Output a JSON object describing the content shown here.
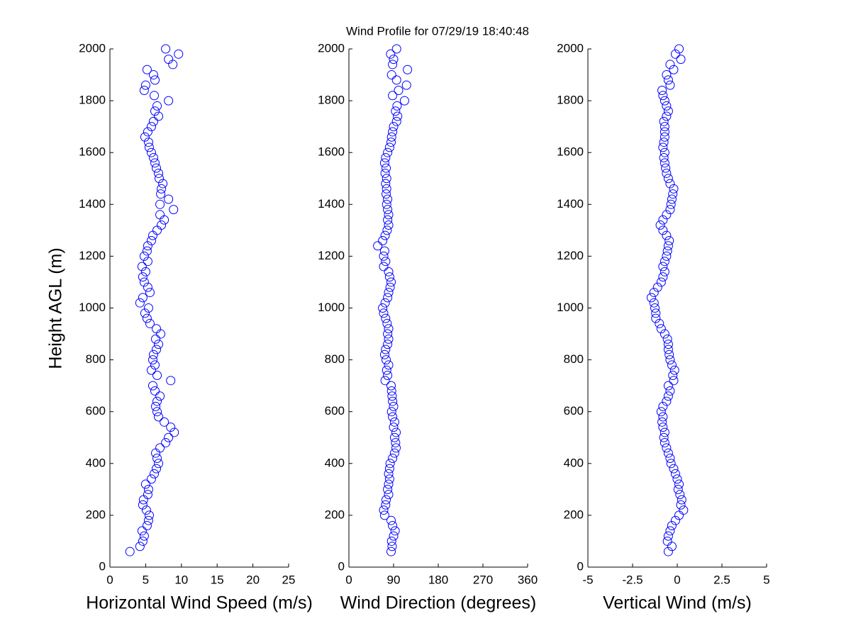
{
  "title": "Wind Profile for  07/29/19 18:40:48",
  "chart_data": [
    {
      "type": "scatter",
      "xlabel": "Horizontal Wind Speed (m/s)",
      "ylabel": "Height AGL (m)",
      "color": "#0000ff",
      "xlim": [
        0,
        25
      ],
      "xticks": [
        0,
        5,
        10,
        15,
        20,
        25
      ],
      "ylim": [
        0,
        2000
      ],
      "yticks": [
        0,
        200,
        400,
        600,
        800,
        1000,
        1200,
        1400,
        1600,
        1800,
        2000
      ],
      "x": [
        2.8,
        4.2,
        4.6,
        4.8,
        4.5,
        5.2,
        5.4,
        5.5,
        5.1,
        4.6,
        4.7,
        5.3,
        5.4,
        5.0,
        5.8,
        6.2,
        6.5,
        6.8,
        6.6,
        6.4,
        7.0,
        7.8,
        8.2,
        9.0,
        8.5,
        7.6,
        6.8,
        6.6,
        6.4,
        6.6,
        7.0,
        6.3,
        6.0,
        8.5,
        6.6,
        5.8,
        6.3,
        6.0,
        6.1,
        6.5,
        6.8,
        6.4,
        7.1,
        6.5,
        5.6,
        5.2,
        4.9,
        5.4,
        4.2,
        4.6,
        5.6,
        5.3,
        4.8,
        4.6,
        5.0,
        4.5,
        5.3,
        4.8,
        5.2,
        5.3,
        5.8,
        6.0,
        6.6,
        7.2,
        7.6,
        7.0,
        8.9,
        7.0,
        8.2,
        7.1,
        7.2,
        7.4,
        6.9,
        6.8,
        6.5,
        6.3,
        6.1,
        5.8,
        5.5,
        5.4,
        4.9,
        5.3,
        5.8,
        6.1,
        6.8,
        6.3,
        6.6,
        8.2,
        6.2,
        4.8,
        5.0,
        6.3,
        6.1,
        5.2,
        8.8,
        8.2,
        9.6,
        7.8
      ],
      "y": [
        60,
        80,
        100,
        120,
        140,
        160,
        180,
        200,
        220,
        240,
        260,
        280,
        300,
        320,
        340,
        360,
        380,
        400,
        420,
        440,
        460,
        480,
        500,
        520,
        540,
        560,
        580,
        600,
        620,
        640,
        660,
        680,
        700,
        720,
        740,
        760,
        780,
        800,
        820,
        840,
        860,
        880,
        900,
        920,
        940,
        960,
        980,
        1000,
        1020,
        1040,
        1060,
        1080,
        1100,
        1120,
        1140,
        1160,
        1180,
        1200,
        1220,
        1240,
        1260,
        1280,
        1300,
        1320,
        1340,
        1360,
        1380,
        1400,
        1420,
        1440,
        1460,
        1480,
        1500,
        1520,
        1540,
        1560,
        1580,
        1600,
        1620,
        1640,
        1660,
        1680,
        1700,
        1720,
        1740,
        1760,
        1780,
        1800,
        1820,
        1840,
        1860,
        1880,
        1900,
        1920,
        1940,
        1960,
        1980,
        2000
      ]
    },
    {
      "type": "scatter",
      "xlabel": "Wind Direction (degrees)",
      "color": "#0000ff",
      "xlim": [
        0,
        360
      ],
      "xticks": [
        0,
        90,
        180,
        270,
        360
      ],
      "ylim": [
        0,
        2000
      ],
      "yticks": [
        0,
        200,
        400,
        600,
        800,
        1000,
        1200,
        1400,
        1600,
        1800,
        2000
      ],
      "x": [
        85,
        87,
        86,
        90,
        93,
        88,
        85,
        72,
        70,
        74,
        75,
        80,
        78,
        80,
        82,
        80,
        82,
        83,
        88,
        92,
        95,
        94,
        92,
        95,
        90,
        92,
        88,
        86,
        90,
        88,
        87,
        86,
        85,
        73,
        78,
        76,
        80,
        75,
        72,
        74,
        78,
        80,
        78,
        80,
        77,
        74,
        70,
        68,
        73,
        78,
        80,
        83,
        85,
        82,
        80,
        70,
        74,
        70,
        72,
        58,
        68,
        73,
        77,
        80,
        78,
        80,
        78,
        76,
        78,
        75,
        76,
        74,
        76,
        73,
        75,
        72,
        74,
        78,
        82,
        85,
        86,
        88,
        90,
        96,
        98,
        94,
        97,
        112,
        88,
        100,
        116,
        96,
        86,
        118,
        88,
        90,
        84,
        96
      ],
      "y": [
        60,
        80,
        100,
        120,
        140,
        160,
        180,
        200,
        220,
        240,
        260,
        280,
        300,
        320,
        340,
        360,
        380,
        400,
        420,
        440,
        460,
        480,
        500,
        520,
        540,
        560,
        580,
        600,
        620,
        640,
        660,
        680,
        700,
        720,
        740,
        760,
        780,
        800,
        820,
        840,
        860,
        880,
        900,
        920,
        940,
        960,
        980,
        1000,
        1020,
        1040,
        1060,
        1080,
        1100,
        1120,
        1140,
        1160,
        1180,
        1200,
        1220,
        1240,
        1260,
        1280,
        1300,
        1320,
        1340,
        1360,
        1380,
        1400,
        1420,
        1440,
        1460,
        1480,
        1500,
        1520,
        1540,
        1560,
        1580,
        1600,
        1620,
        1640,
        1660,
        1680,
        1700,
        1720,
        1740,
        1760,
        1780,
        1800,
        1820,
        1840,
        1860,
        1880,
        1900,
        1920,
        1940,
        1960,
        1980,
        2000
      ]
    },
    {
      "type": "scatter",
      "xlabel": "Vertical Wind (m/s)",
      "color": "#0000ff",
      "xlim": [
        -5,
        5
      ],
      "xticks": [
        -5,
        -2.5,
        0,
        2.5,
        5
      ],
      "ylim": [
        0,
        2000
      ],
      "yticks": [
        0,
        200,
        400,
        600,
        800,
        1000,
        1200,
        1400,
        1600,
        1800,
        2000
      ],
      "x": [
        -0.5,
        -0.3,
        -0.55,
        -0.5,
        -0.4,
        -0.3,
        -0.1,
        0.1,
        0.35,
        0.2,
        0.25,
        0.15,
        0.05,
        0.1,
        0,
        -0.1,
        -0.2,
        -0.35,
        -0.4,
        -0.5,
        -0.6,
        -0.7,
        -0.75,
        -0.7,
        -0.8,
        -0.85,
        -0.8,
        -0.9,
        -0.8,
        -0.6,
        -0.5,
        -0.4,
        -0.5,
        -0.2,
        -0.25,
        -0.15,
        -0.3,
        -0.4,
        -0.45,
        -0.5,
        -0.5,
        -0.55,
        -0.7,
        -0.9,
        -1.0,
        -1.2,
        -1.2,
        -1.25,
        -1.3,
        -1.45,
        -1.3,
        -1.1,
        -0.9,
        -0.8,
        -0.7,
        -0.8,
        -0.7,
        -0.6,
        -0.55,
        -0.5,
        -0.45,
        -0.6,
        -0.8,
        -0.95,
        -0.8,
        -0.6,
        -0.4,
        -0.35,
        -0.3,
        -0.25,
        -0.2,
        -0.4,
        -0.5,
        -0.6,
        -0.65,
        -0.7,
        -0.75,
        -0.7,
        -0.8,
        -0.75,
        -0.7,
        -0.7,
        -0.7,
        -0.75,
        -0.6,
        -0.5,
        -0.6,
        -0.7,
        -0.8,
        -0.85,
        -0.4,
        -0.5,
        -0.6,
        -0.2,
        -0.4,
        0.2,
        -0.1,
        0.1
      ],
      "y": [
        60,
        80,
        100,
        120,
        140,
        160,
        180,
        200,
        220,
        240,
        260,
        280,
        300,
        320,
        340,
        360,
        380,
        400,
        420,
        440,
        460,
        480,
        500,
        520,
        540,
        560,
        580,
        600,
        620,
        640,
        660,
        680,
        700,
        720,
        740,
        760,
        780,
        800,
        820,
        840,
        860,
        880,
        900,
        920,
        940,
        960,
        980,
        1000,
        1020,
        1040,
        1060,
        1080,
        1100,
        1120,
        1140,
        1160,
        1180,
        1200,
        1220,
        1240,
        1260,
        1280,
        1300,
        1320,
        1340,
        1360,
        1380,
        1400,
        1420,
        1440,
        1460,
        1480,
        1500,
        1520,
        1540,
        1560,
        1580,
        1600,
        1620,
        1640,
        1660,
        1680,
        1700,
        1720,
        1740,
        1760,
        1780,
        1800,
        1820,
        1840,
        1860,
        1880,
        1900,
        1920,
        1940,
        1960,
        1980,
        2000
      ]
    }
  ]
}
